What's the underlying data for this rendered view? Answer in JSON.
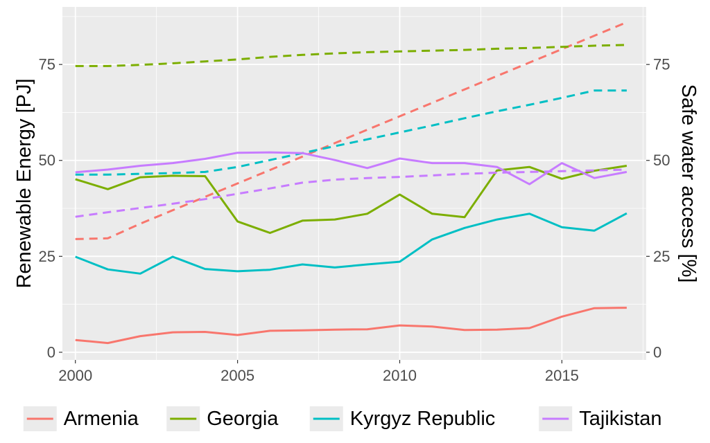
{
  "chart_data": {
    "type": "line",
    "ylabel": "Renewable Energy [PJ]",
    "y2label": "Safe water access [%]",
    "xlim": [
      1999.6,
      2017.6
    ],
    "ylim": [
      -2,
      90
    ],
    "y2lim": [
      -2,
      90
    ],
    "x_ticks": [
      2000,
      2005,
      2010,
      2015
    ],
    "y_ticks": [
      0,
      25,
      50,
      75
    ],
    "y2_ticks": [
      0,
      25,
      50,
      75
    ],
    "x": [
      2000,
      2001,
      2002,
      2003,
      2004,
      2005,
      2006,
      2007,
      2008,
      2009,
      2010,
      2011,
      2012,
      2013,
      2014,
      2015,
      2016,
      2017
    ],
    "grid": true,
    "legend_position": "bottom",
    "series": [
      {
        "name": "Armenia",
        "color": "#F8766D",
        "renewable_energy": [
          3.2,
          2.4,
          4.2,
          5.2,
          5.3,
          4.5,
          5.6,
          5.7,
          5.9,
          6.0,
          7.0,
          6.7,
          5.8,
          5.9,
          6.3,
          9.3,
          11.5,
          11.6
        ],
        "safe_water_access": [
          29.5,
          29.7,
          33.5,
          37.0,
          40.5,
          44.0,
          47.5,
          51.0,
          54.5,
          58.0,
          61.5,
          65.0,
          68.5,
          72.0,
          75.5,
          79.0,
          82.5,
          86.0
        ]
      },
      {
        "name": "Georgia",
        "color": "#7CAE00",
        "renewable_energy": [
          45.1,
          42.5,
          45.6,
          46.0,
          45.9,
          34.1,
          31.1,
          34.3,
          34.6,
          36.1,
          41.1,
          36.1,
          35.2,
          47.4,
          48.3,
          45.2,
          47.3,
          48.6
        ],
        "safe_water_access": [
          74.6,
          74.6,
          74.9,
          75.3,
          75.8,
          76.3,
          77.0,
          77.5,
          77.9,
          78.2,
          78.4,
          78.6,
          78.8,
          79.1,
          79.3,
          79.6,
          79.9,
          80.1
        ]
      },
      {
        "name": "Kyrgyz Republic",
        "color": "#00BFC4",
        "renewable_energy": [
          24.9,
          21.6,
          20.5,
          24.9,
          21.7,
          21.1,
          21.5,
          22.9,
          22.1,
          22.9,
          23.6,
          29.4,
          32.4,
          34.6,
          36.1,
          32.6,
          31.7,
          36.2
        ],
        "safe_water_access": [
          46.3,
          46.3,
          46.5,
          46.7,
          47.0,
          48.3,
          50.1,
          51.9,
          53.7,
          55.5,
          57.3,
          59.1,
          61.0,
          62.8,
          64.5,
          66.3,
          68.2,
          68.2
        ]
      },
      {
        "name": "Tajikistan",
        "color": "#C77CFF",
        "renewable_energy": [
          46.9,
          47.6,
          48.6,
          49.3,
          50.4,
          52.0,
          52.1,
          51.9,
          50.1,
          48.0,
          50.5,
          49.3,
          49.3,
          48.3,
          43.8,
          49.3,
          45.4,
          47.0
        ],
        "safe_water_access": [
          35.3,
          36.5,
          37.6,
          38.7,
          39.9,
          41.3,
          42.7,
          44.2,
          45.0,
          45.4,
          45.7,
          46.1,
          46.5,
          46.8,
          47.0,
          47.2,
          47.4,
          47.6
        ]
      }
    ]
  }
}
